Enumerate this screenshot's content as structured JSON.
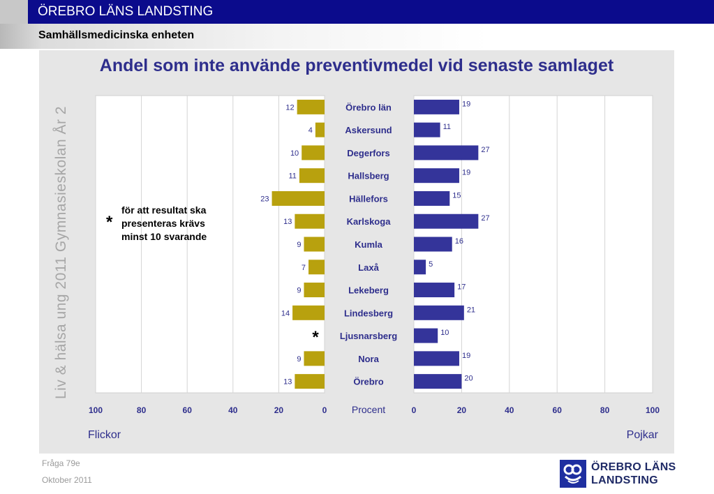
{
  "header": {
    "title": "ÖREBRO LÄNS LANDSTING",
    "subtitle": "Samhällsmedicinska enheten"
  },
  "side_text": "Liv & hälsa ung 2011 Gymnasieskolan År 2",
  "note": {
    "star": "*",
    "text": "för att resultat ska presenteras krävs minst 10 svarande"
  },
  "footer": {
    "question": "Fråga 79e",
    "date": "Oktober 2011"
  },
  "logo": {
    "line1": "ÖREBRO LÄNS",
    "line2": "LANDSTING"
  },
  "colors": {
    "girls": "#b8a10e",
    "boys": "#34349a",
    "title": "#2e2e8c",
    "header_blue": "#0b0b8c"
  },
  "chart_data": {
    "type": "bar",
    "orientation": "horizontal-butterfly",
    "title": "Andel som inte använde preventivmedel vid senaste samlaget",
    "xlabel": "Procent",
    "xlim": [
      0,
      100
    ],
    "ticks": [
      "0",
      "20",
      "40",
      "60",
      "80",
      "100"
    ],
    "left_label": "Flickor",
    "right_label": "Pojkar",
    "categories": [
      "Örebro län",
      "Askersund",
      "Degerfors",
      "Hallsberg",
      "Hällefors",
      "Karlskoga",
      "Kumla",
      "Laxå",
      "Lekeberg",
      "Lindesberg",
      "Ljusnarsberg",
      "Nora",
      "Örebro"
    ],
    "series": [
      {
        "name": "Flickor",
        "values": [
          12,
          4,
          10,
          11,
          23,
          13,
          9,
          7,
          9,
          14,
          null,
          9,
          13
        ]
      },
      {
        "name": "Pojkar",
        "values": [
          19,
          11,
          27,
          19,
          15,
          27,
          16,
          5,
          17,
          21,
          10,
          19,
          20
        ]
      }
    ],
    "missing_marker": "*",
    "grid": true
  }
}
